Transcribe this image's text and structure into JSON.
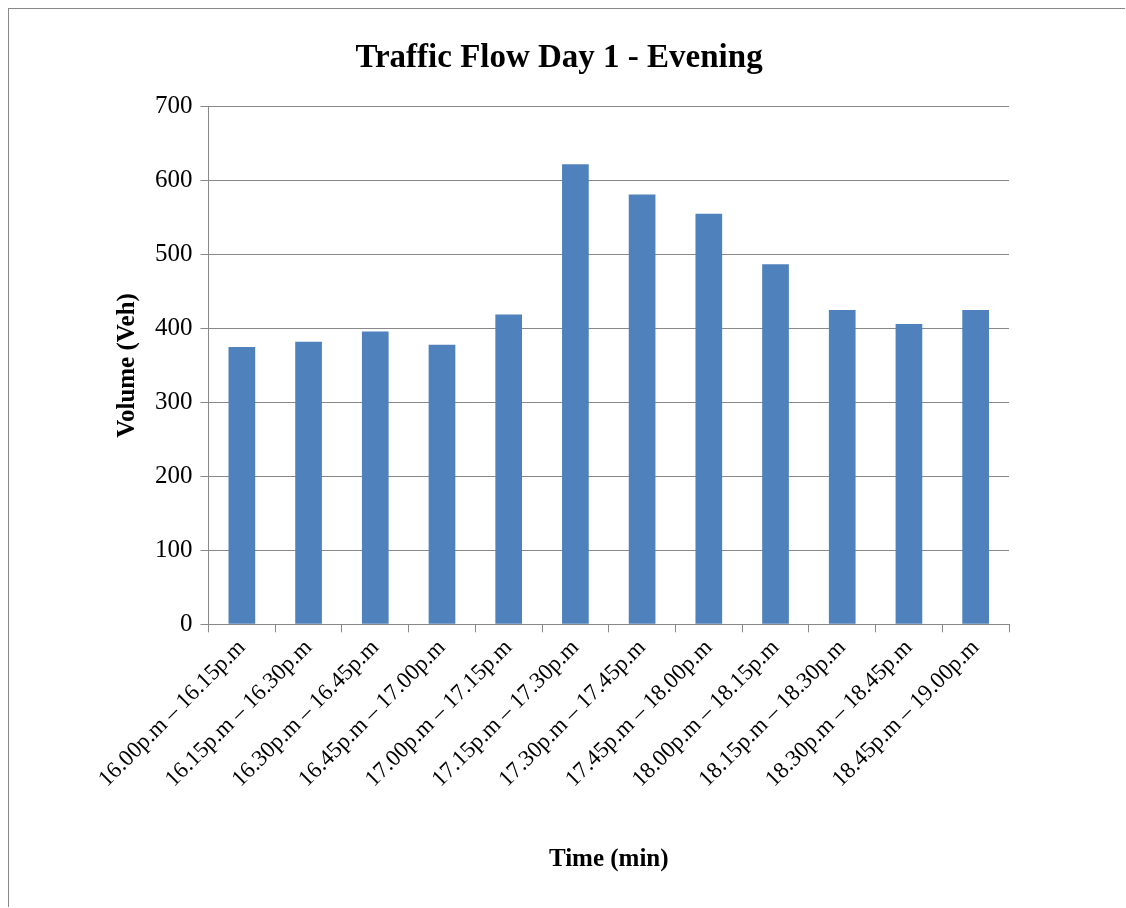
{
  "chart_data": {
    "type": "bar",
    "title": "Traffic Flow Day 1 - Evening",
    "xlabel": "Time (min)",
    "ylabel": "Volume (Veh)",
    "categories": [
      "16.00p.m – 16.15p.m",
      "16.15p.m – 16.30p.m",
      "16.30p.m – 16.45p.m",
      "16.45p.m – 17.00p.m",
      "17.00p.m – 17.15p.m",
      "17.15p.m – 17.30p.m",
      "17.30p.m – 17.45p.m",
      "17.45p.m – 18.00p.m",
      "18.00p.m – 18.15p.m",
      "18.15p.m – 18.30p.m",
      "18.30p.m – 18.45p.m",
      "18.45p.m – 19.00p.m"
    ],
    "values": [
      375,
      382,
      396,
      378,
      419,
      622,
      581,
      555,
      487,
      425,
      406,
      425
    ],
    "color": "#4f81bd",
    "ylim": [
      0,
      700
    ],
    "yticks": [
      0,
      100,
      200,
      300,
      400,
      500,
      600,
      700
    ],
    "grid": "y",
    "legend": false
  }
}
